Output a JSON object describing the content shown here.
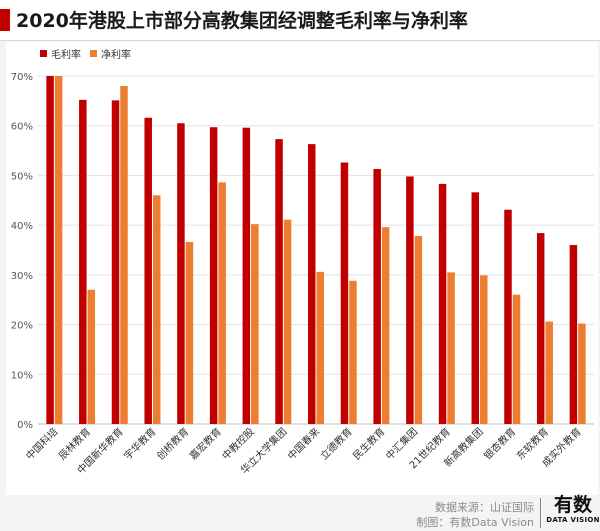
{
  "header": {
    "title": "2020年港股上市部分高教集团经调整毛利率与净利率",
    "accent_color": "#c00000"
  },
  "footer": {
    "source": "数据来源：山证国际",
    "credit": "制图：有数Data Vision"
  },
  "brand": {
    "name_cn": "有数",
    "name_en": "DATA VISION"
  },
  "chart_data": {
    "type": "bar",
    "title": "2020年港股上市部分高教集团经调整毛利率与净利率",
    "xlabel": "",
    "ylabel": "",
    "ylim": [
      0,
      70
    ],
    "y_ticks": [
      "0%",
      "10%",
      "20%",
      "30%",
      "40%",
      "50%",
      "60%",
      "70%"
    ],
    "grid": true,
    "legend_position": "top-left",
    "categories": [
      "中国科培",
      "辰林教育",
      "中国新华教育",
      "宇华教育",
      "创桥教育",
      "嘉宏教育",
      "中教控股",
      "华立大学集团",
      "中国春来",
      "立德教育",
      "民生教育",
      "中汇集团",
      "21世纪教育",
      "新高教集团",
      "银杏教育",
      "东软教育",
      "成实外教育"
    ],
    "series": [
      {
        "name": "毛利率",
        "color": "#c00000",
        "values": [
          70.0,
          65.2,
          65.1,
          61.6,
          60.5,
          59.7,
          59.6,
          57.3,
          56.3,
          52.6,
          51.3,
          49.8,
          48.3,
          46.6,
          43.1,
          38.4,
          36.0
        ]
      },
      {
        "name": "净利率",
        "color": "#ed7d31",
        "values": [
          70.0,
          27.0,
          68.0,
          46.0,
          36.6,
          48.6,
          40.2,
          41.1,
          30.6,
          28.8,
          39.6,
          37.8,
          30.5,
          29.9,
          26.0,
          20.6,
          20.2
        ]
      }
    ]
  }
}
